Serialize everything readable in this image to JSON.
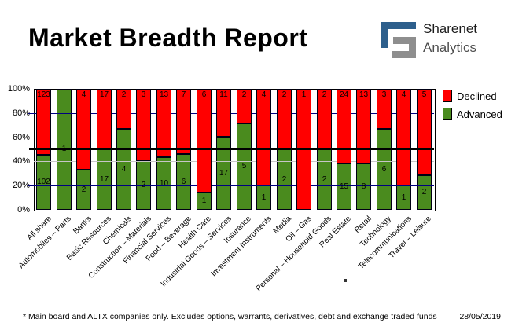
{
  "title": "Market Breadth Report",
  "logo": {
    "name": "Sharenet",
    "subname": "Analytics"
  },
  "footer": {
    "note": "* Main board and ALTX companies only. Excludes options, warrants, derivatives, debt and exchange traded funds",
    "date": "28/05/2019"
  },
  "chart_data": {
    "type": "bar",
    "subtype": "stacked-100-percent",
    "title": "Market Breadth Report",
    "categories": [
      "All share",
      "Automobiles – Parts",
      "Banks",
      "Basic Resources",
      "Chemicals",
      "Construction – Materials",
      "Financial Services",
      "Food – Beverage",
      "Health Care",
      "Industrial Goods – Services",
      "Insurance",
      "Investment Instruments",
      "Media",
      "Oil – Gas",
      "Personal – Household Goods",
      "Real Estate",
      "Retail",
      "Technology",
      "Telecommunications",
      "Travel – Leisure"
    ],
    "series": [
      {
        "name": "Declined",
        "color": "#ff0000",
        "values": [
          123,
          0,
          4,
          17,
          2,
          3,
          13,
          7,
          6,
          11,
          2,
          4,
          2,
          1,
          2,
          24,
          13,
          3,
          4,
          5
        ]
      },
      {
        "name": "Advanced",
        "color": "#4a8b1e",
        "values": [
          102,
          1,
          2,
          17,
          4,
          2,
          10,
          6,
          1,
          17,
          5,
          1,
          2,
          0,
          2,
          15,
          8,
          6,
          1,
          2
        ]
      }
    ],
    "y_axis": {
      "ticks": [
        "100%",
        "80%",
        "60%",
        "40%",
        "20%",
        "0%"
      ],
      "min": 0,
      "max": 100
    },
    "gridlines": {
      "navy_at": [
        80,
        20
      ],
      "gray_at": [
        60,
        40
      ],
      "black_mid_at": 50
    },
    "legend_position": "right",
    "grid": true
  },
  "colors": {
    "declined": "#ff0000",
    "advanced": "#4a8b1e",
    "navy_grid": "#000080",
    "gray_grid": "#c6c6c6",
    "mid_line": "#000000",
    "logo_blue": "#2d5f8c",
    "logo_gray": "#8e8e8e"
  }
}
